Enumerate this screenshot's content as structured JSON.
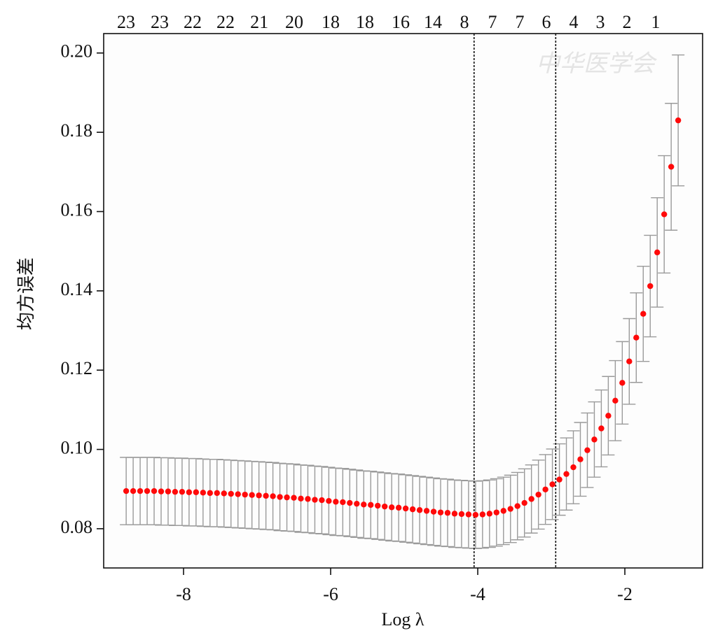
{
  "chart_data": {
    "type": "errorbar",
    "xlabel": "Log λ",
    "ylabel": "均方误差",
    "watermark": "中华医学会",
    "xlim": [
      -9.086,
      -0.943
    ],
    "ylim": [
      0.0701,
      0.2049
    ],
    "xticks": [
      -8,
      -6,
      -4,
      -2
    ],
    "yticks": [
      0.08,
      {
        "value": 0.1,
        "label": "0.10"
      },
      0.12,
      0.14,
      0.16,
      0.18,
      {
        "value": 0.2,
        "label": "0.20"
      }
    ],
    "top_ticks": [
      {
        "value": -8.781,
        "label": "23"
      },
      {
        "value": -8.324,
        "label": "23"
      },
      {
        "value": -7.876,
        "label": "22"
      },
      {
        "value": -7.429,
        "label": "22"
      },
      {
        "value": -6.971,
        "label": "21"
      },
      {
        "value": -6.495,
        "label": "20"
      },
      {
        "value": -6.0,
        "label": "18"
      },
      {
        "value": -5.533,
        "label": "18"
      },
      {
        "value": -5.048,
        "label": "16"
      },
      {
        "value": -4.61,
        "label": "14"
      },
      {
        "value": -4.181,
        "label": "8"
      },
      {
        "value": -3.8,
        "label": "7"
      },
      {
        "value": -3.429,
        "label": "7"
      },
      {
        "value": -3.067,
        "label": "6"
      },
      {
        "value": -2.695,
        "label": "4"
      },
      {
        "value": -2.333,
        "label": "3"
      },
      {
        "value": -1.971,
        "label": "2"
      },
      {
        "value": -1.581,
        "label": "1"
      }
    ],
    "vlines": [
      -4.05,
      -2.94
    ],
    "point_color": "#ff0a0a",
    "bar_color": "#9a9a9a",
    "x": [
      -8.78,
      -8.685,
      -8.59,
      -8.495,
      -8.4,
      -8.305,
      -8.21,
      -8.115,
      -8.02,
      -7.925,
      -7.83,
      -7.735,
      -7.64,
      -7.545,
      -7.45,
      -7.355,
      -7.26,
      -7.165,
      -7.07,
      -6.975,
      -6.88,
      -6.785,
      -6.69,
      -6.595,
      -6.5,
      -6.405,
      -6.31,
      -6.215,
      -6.12,
      -6.025,
      -5.93,
      -5.835,
      -5.74,
      -5.645,
      -5.55,
      -5.455,
      -5.36,
      -5.265,
      -5.17,
      -5.075,
      -4.98,
      -4.885,
      -4.79,
      -4.695,
      -4.6,
      -4.505,
      -4.41,
      -4.315,
      -4.22,
      -4.125,
      -4.03,
      -3.935,
      -3.84,
      -3.745,
      -3.65,
      -3.555,
      -3.46,
      -3.365,
      -3.27,
      -3.175,
      -3.08,
      -2.985,
      -2.89,
      -2.795,
      -2.7,
      -2.605,
      -2.51,
      -2.415,
      -2.32,
      -2.225,
      -2.13,
      -2.035,
      -1.94,
      -1.845,
      -1.75,
      -1.655,
      -1.56,
      -1.465,
      -1.37,
      -1.275
    ],
    "values": [
      0.0895,
      0.0895,
      0.0895,
      0.0895,
      0.0895,
      0.0894,
      0.0894,
      0.0893,
      0.0893,
      0.0892,
      0.0892,
      0.0891,
      0.089,
      0.089,
      0.0889,
      0.0888,
      0.0887,
      0.0886,
      0.0885,
      0.0884,
      0.0883,
      0.0882,
      0.088,
      0.0879,
      0.0878,
      0.0876,
      0.0875,
      0.0873,
      0.0872,
      0.087,
      0.0868,
      0.0867,
      0.0865,
      0.0863,
      0.0861,
      0.086,
      0.0858,
      0.0856,
      0.0854,
      0.0853,
      0.0851,
      0.0849,
      0.0847,
      0.0845,
      0.0843,
      0.0841,
      0.084,
      0.0838,
      0.0837,
      0.0836,
      0.0835,
      0.0836,
      0.0838,
      0.0841,
      0.0845,
      0.085,
      0.0857,
      0.0865,
      0.0875,
      0.0886,
      0.0899,
      0.0912,
      0.0924,
      0.0938,
      0.0955,
      0.0975,
      0.0998,
      0.1025,
      0.1053,
      0.1085,
      0.1123,
      0.1168,
      0.1222,
      0.1282,
      0.1342,
      0.1412,
      0.1497,
      0.1593,
      0.1713,
      0.183
    ],
    "errors": [
      0.0085,
      0.0085,
      0.0085,
      0.0085,
      0.0085,
      0.0085,
      0.0085,
      0.0085,
      0.0085,
      0.0085,
      0.0085,
      0.0085,
      0.0085,
      0.0085,
      0.0085,
      0.0085,
      0.0085,
      0.0085,
      0.0085,
      0.0085,
      0.0085,
      0.0085,
      0.0085,
      0.0085,
      0.0085,
      0.0085,
      0.0085,
      0.0085,
      0.0085,
      0.0085,
      0.0085,
      0.0085,
      0.0085,
      0.0085,
      0.0085,
      0.0085,
      0.0085,
      0.0085,
      0.0085,
      0.0085,
      0.0085,
      0.0085,
      0.0085,
      0.0085,
      0.0085,
      0.0085,
      0.0085,
      0.0085,
      0.0085,
      0.0085,
      0.0085,
      0.0085,
      0.0085,
      0.0085,
      0.0085,
      0.0085,
      0.0085,
      0.0086,
      0.0086,
      0.0087,
      0.0088,
      0.0089,
      0.009,
      0.0091,
      0.0092,
      0.0093,
      0.0094,
      0.0095,
      0.0097,
      0.0099,
      0.0101,
      0.0104,
      0.0108,
      0.0113,
      0.012,
      0.0128,
      0.0138,
      0.0148,
      0.016,
      0.0165
    ]
  }
}
